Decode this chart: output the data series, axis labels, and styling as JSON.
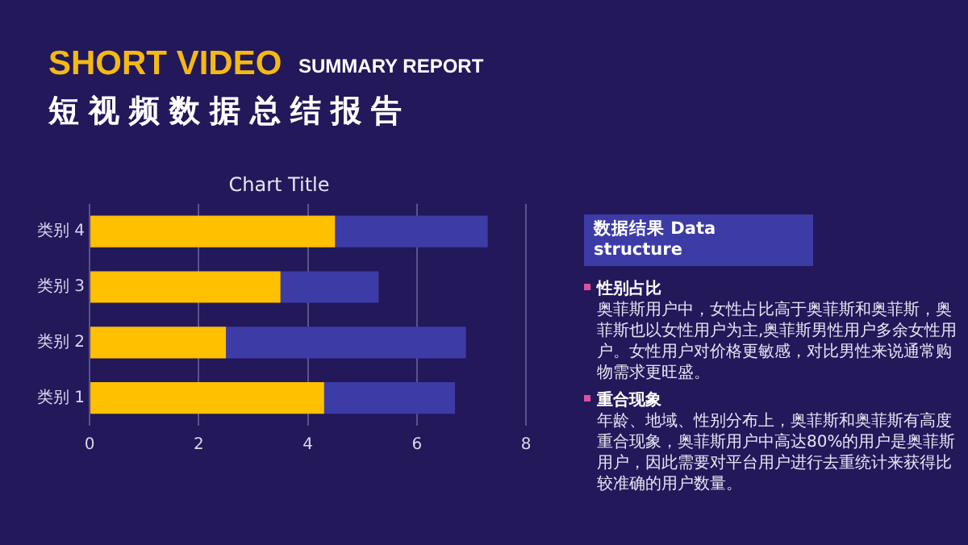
{
  "chart_data": {
    "type": "bar",
    "title": "Chart Title",
    "orientation": "horizontal",
    "stacked": true,
    "categories": [
      "类别 4",
      "类别 3",
      "类别 2",
      "类别 1"
    ],
    "series": [
      {
        "color": "#ffc000",
        "values": [
          4.5,
          3.5,
          2.5,
          4.3
        ]
      },
      {
        "color": "#3d3ba6",
        "values": [
          2.8,
          1.8,
          4.4,
          2.4
        ]
      }
    ],
    "xlim": [
      0,
      8
    ],
    "xticks": [
      0,
      2,
      4,
      6,
      8
    ],
    "grid": "x",
    "legend": false,
    "annotations": [
      "SHORT VIDEO",
      "SUMMARY REPORT",
      "短视频数据总结报告",
      "数据结果 Data structure",
      "性别占比",
      "奥菲斯用户中，女性占比高于奥菲斯和奥菲斯，奥菲斯也以女性用户为主,奥菲斯男性用户多余女性用户。女性用户对价格更敏感，对比男性来说通常购物需求更旺盛。",
      "重合现象",
      "年龄、地域、性别分布上，奥菲斯和奥菲斯有高度重合现象，奥菲斯用户中高达80%的用户是奥菲斯用户，因此需要对平台用户进行去重统计来获得比较准确的用户数量。"
    ]
  }
}
